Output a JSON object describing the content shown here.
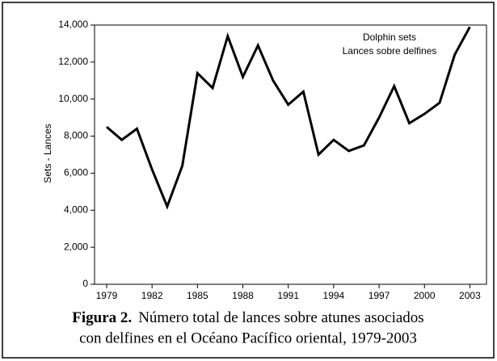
{
  "chart_data": {
    "type": "line",
    "annotations": [
      "Dolphin sets",
      "Lances sobre delfines"
    ],
    "ylabel": "Sets - Lances",
    "x": [
      1979,
      1980,
      1981,
      1982,
      1983,
      1984,
      1985,
      1986,
      1987,
      1988,
      1989,
      1990,
      1991,
      1992,
      1993,
      1994,
      1995,
      1996,
      1997,
      1998,
      1999,
      2000,
      2001,
      2002,
      2003
    ],
    "series": [
      {
        "name": "Dolphin sets",
        "color": "#000000",
        "values": [
          8500,
          7800,
          8400,
          6200,
          4200,
          6400,
          11400,
          10600,
          13400,
          11200,
          12900,
          11000,
          9700,
          10400,
          7000,
          7800,
          7200,
          7500,
          9000,
          10700,
          8700,
          9200,
          9800,
          12400,
          13900
        ]
      }
    ],
    "xlim": [
      1978.2,
      2004.1
    ],
    "xticks": [
      1979,
      1982,
      1985,
      1988,
      1991,
      1994,
      1997,
      2000,
      2003
    ],
    "ylim": [
      0,
      14000
    ],
    "yticks": [
      0,
      {
        "value": 2000,
        "label": "2,000"
      },
      {
        "value": 4000,
        "label": "4,000"
      },
      {
        "value": 6000,
        "label": "6,000"
      },
      {
        "value": 8000,
        "label": "8,000"
      },
      {
        "value": 10000,
        "label": "10,000"
      },
      {
        "value": 12000,
        "label": "12,000"
      },
      {
        "value": 14000,
        "label": "14,000"
      }
    ],
    "caption_label": "Figura 2.",
    "caption": [
      "Número total de lances sobre atunes asociados",
      "con delfines en el Océano Pacífico oriental, 1979-2003"
    ]
  }
}
